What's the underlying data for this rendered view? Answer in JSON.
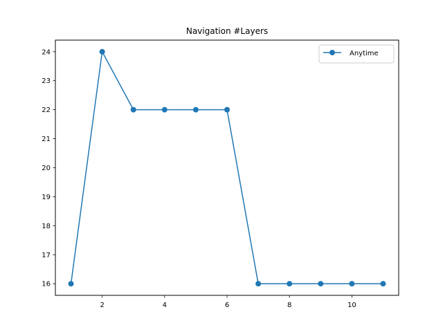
{
  "chart_data": {
    "type": "line",
    "title": "Navigation #Layers",
    "xlabel": "",
    "ylabel": "",
    "xlim": [
      0.5,
      11.5
    ],
    "ylim": [
      15.6,
      24.4
    ],
    "xticks": [
      2,
      4,
      6,
      8,
      10
    ],
    "yticks": [
      16,
      17,
      18,
      19,
      20,
      21,
      22,
      23,
      24
    ],
    "grid": false,
    "legend_position": "top-right",
    "series": [
      {
        "name": "Anytime",
        "color": "#1f77b4",
        "marker": "circle",
        "x": [
          1,
          2,
          3,
          4,
          5,
          6,
          7,
          8,
          9,
          10,
          11
        ],
        "y": [
          16,
          24,
          22,
          22,
          22,
          22,
          16,
          16,
          16,
          16,
          16
        ]
      }
    ]
  }
}
